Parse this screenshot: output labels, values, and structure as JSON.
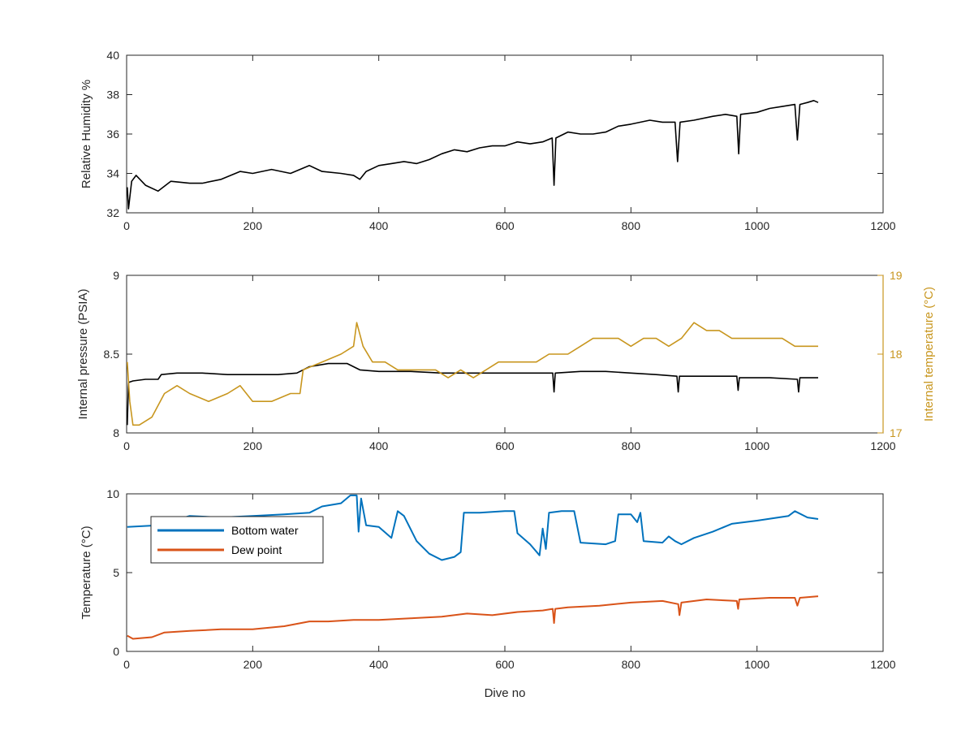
{
  "colors": {
    "humidity": "#000000",
    "pressure": "#000000",
    "internal_temp": "#C8961E",
    "bottom_water": "#0072BD",
    "dew_point": "#D95319",
    "axis": "#262626"
  },
  "chart_data": [
    {
      "type": "line",
      "title": "",
      "xlabel": "",
      "ylabel": "Relative Humidity %",
      "xlim": [
        0,
        1200
      ],
      "ylim": [
        32,
        40
      ],
      "xticks": [
        "0",
        "200",
        "400",
        "600",
        "800",
        "1000",
        "1200"
      ],
      "yticks": [
        "32",
        "34",
        "36",
        "38",
        "40"
      ],
      "grid": false,
      "series": [
        {
          "color": "#000000",
          "points": [
            [
              1,
              33.3
            ],
            [
              3,
              32.2
            ],
            [
              8,
              33.6
            ],
            [
              15,
              33.9
            ],
            [
              30,
              33.4
            ],
            [
              50,
              33.1
            ],
            [
              70,
              33.6
            ],
            [
              100,
              33.5
            ],
            [
              120,
              33.5
            ],
            [
              150,
              33.7
            ],
            [
              180,
              34.1
            ],
            [
              200,
              34.0
            ],
            [
              230,
              34.2
            ],
            [
              260,
              34.0
            ],
            [
              290,
              34.4
            ],
            [
              310,
              34.1
            ],
            [
              340,
              34.0
            ],
            [
              360,
              33.9
            ],
            [
              370,
              33.7
            ],
            [
              380,
              34.1
            ],
            [
              400,
              34.4
            ],
            [
              420,
              34.5
            ],
            [
              440,
              34.6
            ],
            [
              460,
              34.5
            ],
            [
              480,
              34.7
            ],
            [
              500,
              35.0
            ],
            [
              520,
              35.2
            ],
            [
              540,
              35.1
            ],
            [
              560,
              35.3
            ],
            [
              580,
              35.4
            ],
            [
              600,
              35.4
            ],
            [
              620,
              35.6
            ],
            [
              640,
              35.5
            ],
            [
              660,
              35.6
            ],
            [
              675,
              35.8
            ],
            [
              678,
              33.4
            ],
            [
              681,
              35.8
            ],
            [
              700,
              36.1
            ],
            [
              720,
              36.0
            ],
            [
              740,
              36.0
            ],
            [
              760,
              36.1
            ],
            [
              780,
              36.4
            ],
            [
              800,
              36.5
            ],
            [
              830,
              36.7
            ],
            [
              850,
              36.6
            ],
            [
              870,
              36.6
            ],
            [
              874,
              34.6
            ],
            [
              878,
              36.6
            ],
            [
              900,
              36.7
            ],
            [
              930,
              36.9
            ],
            [
              950,
              37.0
            ],
            [
              968,
              36.9
            ],
            [
              971,
              35.0
            ],
            [
              974,
              37.0
            ],
            [
              1000,
              37.1
            ],
            [
              1020,
              37.3
            ],
            [
              1040,
              37.4
            ],
            [
              1060,
              37.5
            ],
            [
              1064,
              35.7
            ],
            [
              1068,
              37.5
            ],
            [
              1080,
              37.6
            ],
            [
              1090,
              37.7
            ],
            [
              1097,
              37.6
            ]
          ]
        }
      ]
    },
    {
      "type": "line",
      "title": "",
      "xlabel": "",
      "ylabel": "Internal pressure (PSIA)",
      "ylabel_right": "Internal temperature (°C)",
      "xlim": [
        0,
        1200
      ],
      "ylim": [
        8,
        9
      ],
      "ylim_right": [
        17,
        19
      ],
      "xticks": [
        "0",
        "200",
        "400",
        "600",
        "800",
        "1000",
        "1200"
      ],
      "yticks": [
        "8",
        "8.5",
        "9"
      ],
      "yticks_right": [
        "17",
        "18",
        "19"
      ],
      "grid": false,
      "series": [
        {
          "axis": "left",
          "color": "#000000",
          "points": [
            [
              1,
              8.05
            ],
            [
              3,
              8.32
            ],
            [
              10,
              8.33
            ],
            [
              30,
              8.34
            ],
            [
              50,
              8.34
            ],
            [
              55,
              8.37
            ],
            [
              80,
              8.38
            ],
            [
              120,
              8.38
            ],
            [
              160,
              8.37
            ],
            [
              200,
              8.37
            ],
            [
              240,
              8.37
            ],
            [
              270,
              8.38
            ],
            [
              290,
              8.42
            ],
            [
              320,
              8.44
            ],
            [
              350,
              8.44
            ],
            [
              370,
              8.4
            ],
            [
              400,
              8.39
            ],
            [
              450,
              8.39
            ],
            [
              500,
              8.38
            ],
            [
              550,
              8.38
            ],
            [
              600,
              8.38
            ],
            [
              650,
              8.38
            ],
            [
              676,
              8.38
            ],
            [
              678,
              8.26
            ],
            [
              680,
              8.38
            ],
            [
              720,
              8.39
            ],
            [
              760,
              8.39
            ],
            [
              800,
              8.38
            ],
            [
              840,
              8.37
            ],
            [
              873,
              8.36
            ],
            [
              875,
              8.26
            ],
            [
              877,
              8.36
            ],
            [
              920,
              8.36
            ],
            [
              968,
              8.36
            ],
            [
              970,
              8.27
            ],
            [
              972,
              8.35
            ],
            [
              1020,
              8.35
            ],
            [
              1064,
              8.34
            ],
            [
              1066,
              8.26
            ],
            [
              1068,
              8.35
            ],
            [
              1097,
              8.35
            ]
          ]
        },
        {
          "axis": "right",
          "color": "#C8961E",
          "points": [
            [
              1,
              17.9
            ],
            [
              5,
              17.4
            ],
            [
              10,
              17.1
            ],
            [
              20,
              17.1
            ],
            [
              40,
              17.2
            ],
            [
              60,
              17.5
            ],
            [
              80,
              17.6
            ],
            [
              100,
              17.5
            ],
            [
              130,
              17.4
            ],
            [
              160,
              17.5
            ],
            [
              180,
              17.6
            ],
            [
              200,
              17.4
            ],
            [
              230,
              17.4
            ],
            [
              260,
              17.5
            ],
            [
              275,
              17.5
            ],
            [
              280,
              17.8
            ],
            [
              310,
              17.9
            ],
            [
              340,
              18.0
            ],
            [
              360,
              18.1
            ],
            [
              365,
              18.4
            ],
            [
              375,
              18.1
            ],
            [
              390,
              17.9
            ],
            [
              410,
              17.9
            ],
            [
              430,
              17.8
            ],
            [
              450,
              17.8
            ],
            [
              470,
              17.8
            ],
            [
              490,
              17.8
            ],
            [
              510,
              17.7
            ],
            [
              530,
              17.8
            ],
            [
              550,
              17.7
            ],
            [
              570,
              17.8
            ],
            [
              590,
              17.9
            ],
            [
              610,
              17.9
            ],
            [
              630,
              17.9
            ],
            [
              650,
              17.9
            ],
            [
              670,
              18.0
            ],
            [
              700,
              18.0
            ],
            [
              720,
              18.1
            ],
            [
              740,
              18.2
            ],
            [
              760,
              18.2
            ],
            [
              780,
              18.2
            ],
            [
              800,
              18.1
            ],
            [
              820,
              18.2
            ],
            [
              840,
              18.2
            ],
            [
              860,
              18.1
            ],
            [
              880,
              18.2
            ],
            [
              900,
              18.4
            ],
            [
              920,
              18.3
            ],
            [
              940,
              18.3
            ],
            [
              960,
              18.2
            ],
            [
              980,
              18.2
            ],
            [
              1000,
              18.2
            ],
            [
              1020,
              18.2
            ],
            [
              1040,
              18.2
            ],
            [
              1060,
              18.1
            ],
            [
              1080,
              18.1
            ],
            [
              1097,
              18.1
            ]
          ]
        }
      ]
    },
    {
      "type": "line",
      "title": "",
      "xlabel": "Dive no",
      "ylabel": "Temperature (°C)",
      "xlim": [
        0,
        1200
      ],
      "ylim": [
        0,
        10
      ],
      "xticks": [
        "0",
        "200",
        "400",
        "600",
        "800",
        "1000",
        "1200"
      ],
      "yticks": [
        "0",
        "5",
        "10"
      ],
      "grid": false,
      "legend": "top-left",
      "series": [
        {
          "name": "Bottom water",
          "color": "#0072BD",
          "points": [
            [
              1,
              7.9
            ],
            [
              50,
              8.0
            ],
            [
              100,
              8.6
            ],
            [
              150,
              8.5
            ],
            [
              200,
              8.6
            ],
            [
              250,
              8.7
            ],
            [
              290,
              8.8
            ],
            [
              310,
              9.2
            ],
            [
              340,
              9.4
            ],
            [
              355,
              9.9
            ],
            [
              365,
              9.9
            ],
            [
              368,
              7.6
            ],
            [
              372,
              9.7
            ],
            [
              380,
              8.0
            ],
            [
              400,
              7.9
            ],
            [
              420,
              7.2
            ],
            [
              430,
              8.9
            ],
            [
              440,
              8.6
            ],
            [
              460,
              7.0
            ],
            [
              480,
              6.2
            ],
            [
              500,
              5.8
            ],
            [
              520,
              6.0
            ],
            [
              530,
              6.3
            ],
            [
              535,
              8.8
            ],
            [
              560,
              8.8
            ],
            [
              600,
              8.9
            ],
            [
              615,
              8.9
            ],
            [
              620,
              7.5
            ],
            [
              640,
              6.8
            ],
            [
              655,
              6.1
            ],
            [
              660,
              7.8
            ],
            [
              665,
              6.5
            ],
            [
              670,
              8.8
            ],
            [
              690,
              8.9
            ],
            [
              710,
              8.9
            ],
            [
              720,
              6.9
            ],
            [
              760,
              6.8
            ],
            [
              775,
              7.0
            ],
            [
              780,
              8.7
            ],
            [
              800,
              8.7
            ],
            [
              810,
              8.2
            ],
            [
              815,
              8.8
            ],
            [
              820,
              7.0
            ],
            [
              850,
              6.9
            ],
            [
              860,
              7.3
            ],
            [
              870,
              7.0
            ],
            [
              880,
              6.8
            ],
            [
              900,
              7.2
            ],
            [
              930,
              7.6
            ],
            [
              960,
              8.1
            ],
            [
              1000,
              8.3
            ],
            [
              1050,
              8.6
            ],
            [
              1060,
              8.9
            ],
            [
              1080,
              8.5
            ],
            [
              1097,
              8.4
            ]
          ]
        },
        {
          "name": "Dew point",
          "color": "#D95319",
          "points": [
            [
              1,
              1.0
            ],
            [
              10,
              0.8
            ],
            [
              40,
              0.9
            ],
            [
              60,
              1.2
            ],
            [
              100,
              1.3
            ],
            [
              150,
              1.4
            ],
            [
              200,
              1.4
            ],
            [
              250,
              1.6
            ],
            [
              290,
              1.9
            ],
            [
              320,
              1.9
            ],
            [
              360,
              2.0
            ],
            [
              400,
              2.0
            ],
            [
              450,
              2.1
            ],
            [
              500,
              2.2
            ],
            [
              540,
              2.4
            ],
            [
              580,
              2.3
            ],
            [
              620,
              2.5
            ],
            [
              660,
              2.6
            ],
            [
              676,
              2.7
            ],
            [
              678,
              1.8
            ],
            [
              680,
              2.7
            ],
            [
              700,
              2.8
            ],
            [
              750,
              2.9
            ],
            [
              800,
              3.1
            ],
            [
              850,
              3.2
            ],
            [
              875,
              3.0
            ],
            [
              877,
              2.3
            ],
            [
              880,
              3.1
            ],
            [
              920,
              3.3
            ],
            [
              968,
              3.2
            ],
            [
              970,
              2.7
            ],
            [
              972,
              3.3
            ],
            [
              1020,
              3.4
            ],
            [
              1060,
              3.4
            ],
            [
              1064,
              2.9
            ],
            [
              1068,
              3.4
            ],
            [
              1097,
              3.5
            ]
          ]
        }
      ]
    }
  ]
}
